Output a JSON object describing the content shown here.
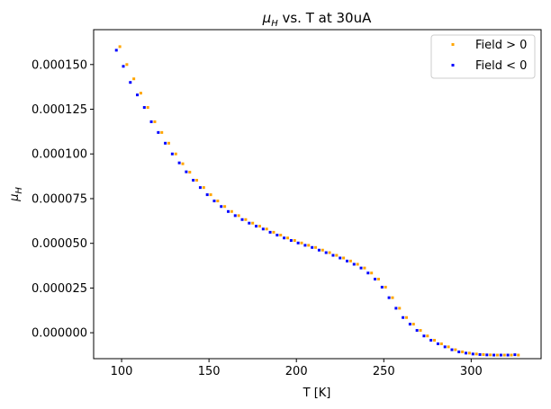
{
  "chart_data": {
    "type": "scatter",
    "title": "μ_H vs. T at 30uA",
    "title_main": "μ",
    "title_sub": "H",
    "title_rest": " vs. T at 30uA",
    "xlabel": "T [K]",
    "ylabel_main": "μ",
    "ylabel_sub": "H",
    "xlim": [
      84,
      340
    ],
    "ylim": [
      -1.45e-05,
      0.0001695
    ],
    "x_ticks": [
      100,
      150,
      200,
      250,
      300
    ],
    "x_tick_labels": [
      "100",
      "150",
      "200",
      "250",
      "300"
    ],
    "y_ticks": [
      0,
      2.5e-05,
      5e-05,
      7.5e-05,
      0.0001,
      0.000125,
      0.00015
    ],
    "y_tick_labels": [
      "0.000000",
      "0.000025",
      "0.000050",
      "0.000075",
      "0.000100",
      "0.000125",
      "0.000150"
    ],
    "grid": false,
    "legend_position": "upper-right",
    "series": [
      {
        "name": "Field > 0",
        "color": "#ffa500",
        "points": [
          [
            99,
            0.00016
          ],
          [
            103,
            0.00015
          ],
          [
            107,
            0.000142
          ],
          [
            111,
            0.000134
          ],
          [
            115,
            0.000126
          ],
          [
            119,
            0.000118
          ],
          [
            123,
            0.000112
          ],
          [
            127,
            0.000106
          ],
          [
            131,
            0.0001
          ],
          [
            135,
            9.45e-05
          ],
          [
            139,
            8.98e-05
          ],
          [
            143,
            8.53e-05
          ],
          [
            147,
            8.12e-05
          ],
          [
            151,
            7.72e-05
          ],
          [
            155,
            7.37e-05
          ],
          [
            159,
            7.06e-05
          ],
          [
            163,
            6.78e-05
          ],
          [
            167,
            6.55e-05
          ],
          [
            171,
            6.33e-05
          ],
          [
            175,
            6.13e-05
          ],
          [
            179,
            5.96e-05
          ],
          [
            183,
            5.8e-05
          ],
          [
            187,
            5.62e-05
          ],
          [
            191,
            5.46e-05
          ],
          [
            195,
            5.3e-05
          ],
          [
            199,
            5.16e-05
          ],
          [
            203,
            5.02e-05
          ],
          [
            207,
            4.89e-05
          ],
          [
            211,
            4.77e-05
          ],
          [
            215,
            4.62e-05
          ],
          [
            219,
            4.48e-05
          ],
          [
            223,
            4.33e-05
          ],
          [
            227,
            4.18e-05
          ],
          [
            231,
            4.01e-05
          ],
          [
            235,
            3.83e-05
          ],
          [
            239,
            3.62e-05
          ],
          [
            243,
            3.34e-05
          ],
          [
            247,
            3e-05
          ],
          [
            251,
            2.55e-05
          ],
          [
            255,
            1.96e-05
          ],
          [
            259,
            1.37e-05
          ],
          [
            263,
            8.5e-06
          ],
          [
            267,
            4.8e-06
          ],
          [
            271,
            1.3e-06
          ],
          [
            275,
            -1.8e-06
          ],
          [
            279,
            -4.2e-06
          ],
          [
            283,
            -6.2e-06
          ],
          [
            287,
            -7.9e-06
          ],
          [
            291,
            -9.5e-06
          ],
          [
            295,
            -1.07e-05
          ],
          [
            299,
            -1.14e-05
          ],
          [
            303,
            -1.19e-05
          ],
          [
            307,
            -1.22e-05
          ],
          [
            311,
            -1.24e-05
          ],
          [
            315,
            -1.25e-05
          ],
          [
            319,
            -1.25e-05
          ],
          [
            323,
            -1.25e-05
          ],
          [
            327,
            -1.25e-05
          ]
        ]
      },
      {
        "name": "Field < 0",
        "color": "#0000ff",
        "points": [
          [
            97,
            0.000158
          ],
          [
            101,
            0.000149
          ],
          [
            105,
            0.00014
          ],
          [
            109,
            0.000133
          ],
          [
            113,
            0.000126
          ],
          [
            117,
            0.000118
          ],
          [
            121,
            0.000112
          ],
          [
            125,
            0.000106
          ],
          [
            129,
            0.0001
          ],
          [
            133,
            9.5e-05
          ],
          [
            137,
            9e-05
          ],
          [
            141,
            8.53e-05
          ],
          [
            145,
            8.12e-05
          ],
          [
            149,
            7.72e-05
          ],
          [
            153,
            7.37e-05
          ],
          [
            157,
            7.06e-05
          ],
          [
            161,
            6.78e-05
          ],
          [
            165,
            6.55e-05
          ],
          [
            169,
            6.33e-05
          ],
          [
            173,
            6.13e-05
          ],
          [
            177,
            5.96e-05
          ],
          [
            181,
            5.8e-05
          ],
          [
            185,
            5.62e-05
          ],
          [
            189,
            5.46e-05
          ],
          [
            193,
            5.3e-05
          ],
          [
            197,
            5.16e-05
          ],
          [
            201,
            5.02e-05
          ],
          [
            205,
            4.89e-05
          ],
          [
            209,
            4.77e-05
          ],
          [
            213,
            4.62e-05
          ],
          [
            217,
            4.48e-05
          ],
          [
            221,
            4.33e-05
          ],
          [
            225,
            4.18e-05
          ],
          [
            229,
            4.01e-05
          ],
          [
            233,
            3.83e-05
          ],
          [
            237,
            3.62e-05
          ],
          [
            241,
            3.34e-05
          ],
          [
            245,
            3e-05
          ],
          [
            249,
            2.55e-05
          ],
          [
            253,
            1.96e-05
          ],
          [
            257,
            1.37e-05
          ],
          [
            261,
            8.5e-06
          ],
          [
            265,
            4.8e-06
          ],
          [
            269,
            1.3e-06
          ],
          [
            273,
            -1.8e-06
          ],
          [
            277,
            -4.2e-06
          ],
          [
            281,
            -6.2e-06
          ],
          [
            285,
            -7.9e-06
          ],
          [
            289,
            -9.5e-06
          ],
          [
            293,
            -1.07e-05
          ],
          [
            297,
            -1.14e-05
          ],
          [
            301,
            -1.19e-05
          ],
          [
            305,
            -1.22e-05
          ],
          [
            309,
            -1.24e-05
          ],
          [
            313,
            -1.25e-05
          ],
          [
            317,
            -1.25e-05
          ],
          [
            321,
            -1.25e-05
          ],
          [
            325,
            -1.23e-05
          ]
        ]
      }
    ]
  }
}
